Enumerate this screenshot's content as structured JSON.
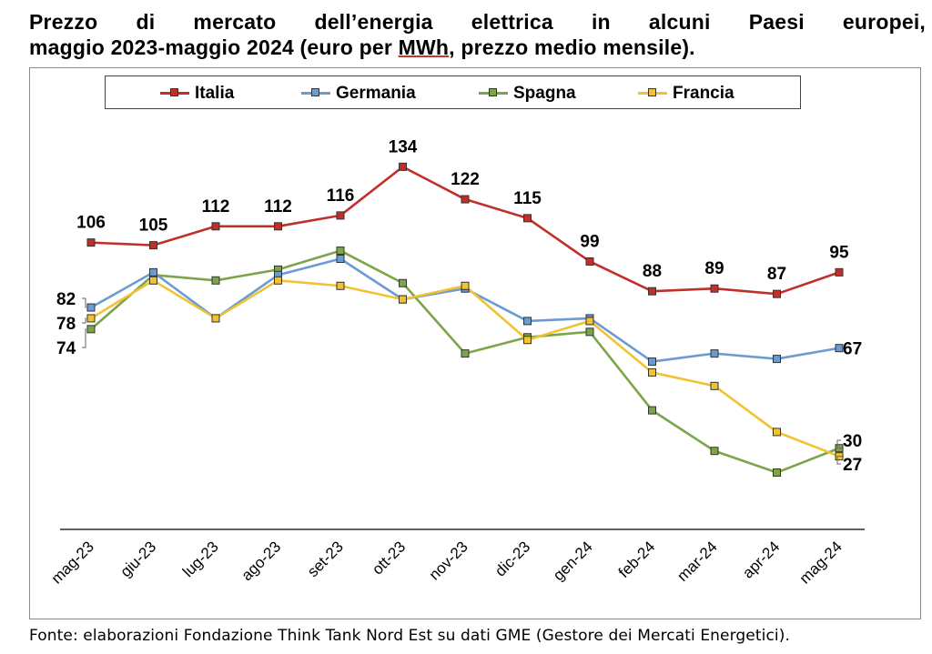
{
  "title": {
    "line1": "Prezzo di mercato dell’energia elettrica in alcuni Paesi europei,",
    "line2_a": "maggio 2023-maggio 2024 (euro per ",
    "line2_b": "MWh",
    "line2_c": ", prezzo medio mensile)."
  },
  "footer": "Fonte: elaborazioni Fondazione Think Tank Nord Est su dati GME (Gestore dei Mercati Energetici).",
  "chart_data": {
    "type": "line",
    "categories": [
      "mag-23",
      "giu-23",
      "lug-23",
      "ago-23",
      "set-23",
      "ott-23",
      "nov-23",
      "dic-23",
      "gen-24",
      "feb-24",
      "mar-24",
      "apr-24",
      "mag-24"
    ],
    "ylim": [
      0,
      140
    ],
    "grid": false,
    "legend_position": "top",
    "series": [
      {
        "name": "Italia",
        "color": "#C0302B",
        "values": [
          106,
          105,
          112,
          112,
          116,
          134,
          122,
          115,
          99,
          88,
          89,
          87,
          95
        ],
        "labels": [
          "106",
          "105",
          "112",
          "112",
          "116",
          "134",
          "122",
          "115",
          "99",
          "88",
          "89",
          "87",
          "95"
        ]
      },
      {
        "name": "Germania",
        "color": "#6A9BD1",
        "values": [
          82,
          95,
          78,
          94,
          100,
          85,
          89,
          77,
          78,
          62,
          65,
          63,
          67
        ],
        "labels": [
          "82",
          "",
          "",
          "",
          "",
          "",
          "",
          "",
          "",
          "",
          "",
          "",
          "67"
        ]
      },
      {
        "name": "Spagna",
        "color": "#7CA54A",
        "values": [
          74,
          94,
          92,
          96,
          103,
          91,
          65,
          71,
          73,
          44,
          29,
          21,
          30
        ],
        "labels": [
          "74",
          "",
          "",
          "",
          "",
          "",
          "",
          "",
          "",
          "",
          "",
          "",
          "30"
        ]
      },
      {
        "name": "Francia",
        "color": "#F2C230",
        "values": [
          78,
          92,
          78,
          92,
          90,
          85,
          90,
          70,
          77,
          58,
          53,
          36,
          27
        ],
        "labels": [
          "78",
          "",
          "",
          "",
          "",
          "",
          "",
          "",
          "",
          "",
          "",
          "",
          "27"
        ]
      }
    ]
  }
}
